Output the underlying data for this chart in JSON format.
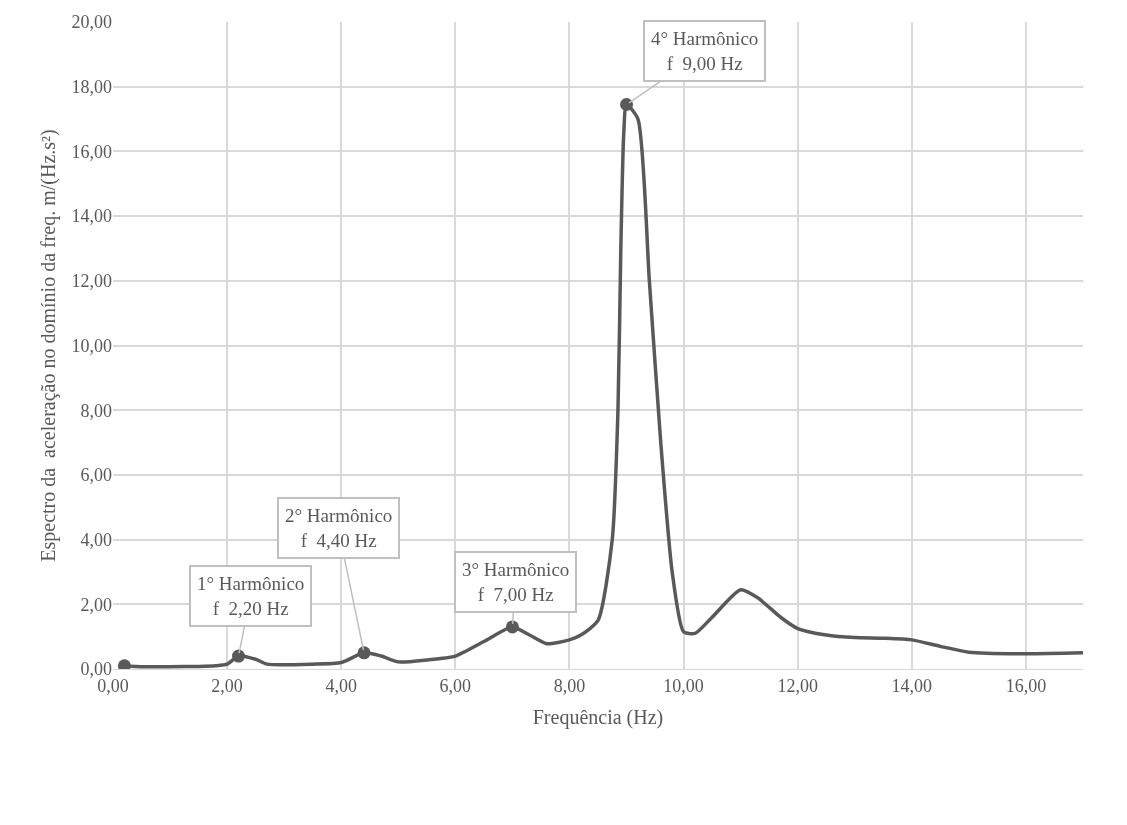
{
  "chart_data": {
    "type": "line",
    "xlabel": "Frequência (Hz)",
    "ylabel": "Espectro da  aceleração no domínio da freq. m/(Hz.s²)",
    "xlim": [
      0,
      17
    ],
    "xticks": [
      {
        "value": 0,
        "label": "0,00"
      },
      {
        "value": 2,
        "label": "2,00"
      },
      {
        "value": 4,
        "label": "4,00"
      },
      {
        "value": 6,
        "label": "6,00"
      },
      {
        "value": 8,
        "label": "8,00"
      },
      {
        "value": 10,
        "label": "10,00"
      },
      {
        "value": 12,
        "label": "12,00"
      },
      {
        "value": 14,
        "label": "14,00"
      },
      {
        "value": 16,
        "label": "16,00"
      }
    ],
    "ylim": [
      0,
      20
    ],
    "yticks": [
      {
        "value": 0,
        "label": "0,00"
      },
      {
        "value": 2,
        "label": "2,00"
      },
      {
        "value": 4,
        "label": "4,00"
      },
      {
        "value": 6,
        "label": "6,00"
      },
      {
        "value": 8,
        "label": "8,00"
      },
      {
        "value": 10,
        "label": "10,00"
      },
      {
        "value": 12,
        "label": "12,00"
      },
      {
        "value": 14,
        "label": "14,00"
      },
      {
        "value": 16,
        "label": "16,00"
      },
      {
        "value": 18,
        "label": "18,00"
      },
      {
        "value": 20,
        "label": "20,00"
      }
    ],
    "grid": true,
    "series": [
      {
        "color": "#595959",
        "marker": "none",
        "x": [
          0.2,
          0.5,
          1.0,
          1.5,
          1.8,
          2.0,
          2.2,
          2.5,
          2.7,
          3.5,
          4.0,
          4.4,
          4.7,
          5.0,
          5.5,
          6.0,
          6.5,
          7.0,
          7.3,
          7.6,
          8.0,
          8.2,
          8.5,
          8.75,
          8.85,
          8.9,
          8.95,
          9.0,
          9.2,
          9.4,
          9.6,
          9.8,
          10.0,
          10.2,
          10.5,
          11.0,
          11.3,
          11.7,
          12.0,
          12.5,
          13.0,
          13.5,
          14.0,
          14.5,
          15.0,
          16.0,
          17.0
        ],
        "values": [
          0.1,
          0.07,
          0.07,
          0.08,
          0.1,
          0.15,
          0.4,
          0.3,
          0.15,
          0.15,
          0.2,
          0.5,
          0.4,
          0.22,
          0.28,
          0.4,
          0.85,
          1.3,
          1.05,
          0.78,
          0.9,
          1.05,
          1.5,
          4.0,
          8.0,
          13.0,
          16.5,
          17.45,
          17.0,
          12.0,
          7.0,
          3.0,
          1.15,
          1.1,
          1.6,
          2.45,
          2.2,
          1.6,
          1.25,
          1.05,
          0.97,
          0.95,
          0.9,
          0.7,
          0.52,
          0.47,
          0.5
        ]
      },
      {
        "type": "scatter",
        "color": "#595959",
        "marker": "circle",
        "x": [
          0.2,
          2.2,
          4.4,
          7.0,
          9.0
        ],
        "values": [
          0.1,
          0.4,
          0.5,
          1.3,
          17.45
        ]
      }
    ],
    "annotations": [
      {
        "text": "1° Harmônico\nf  2,20 Hz",
        "x": 2.2,
        "y": 0.4
      },
      {
        "text": "2° Harmônico\nf  4,40 Hz",
        "x": 4.4,
        "y": 0.5
      },
      {
        "text": "3° Harmônico\nf  7,00 Hz",
        "x": 7.0,
        "y": 1.3
      },
      {
        "text": "4° Harmônico\nf  9,00 Hz",
        "x": 9.0,
        "y": 17.45
      }
    ]
  }
}
